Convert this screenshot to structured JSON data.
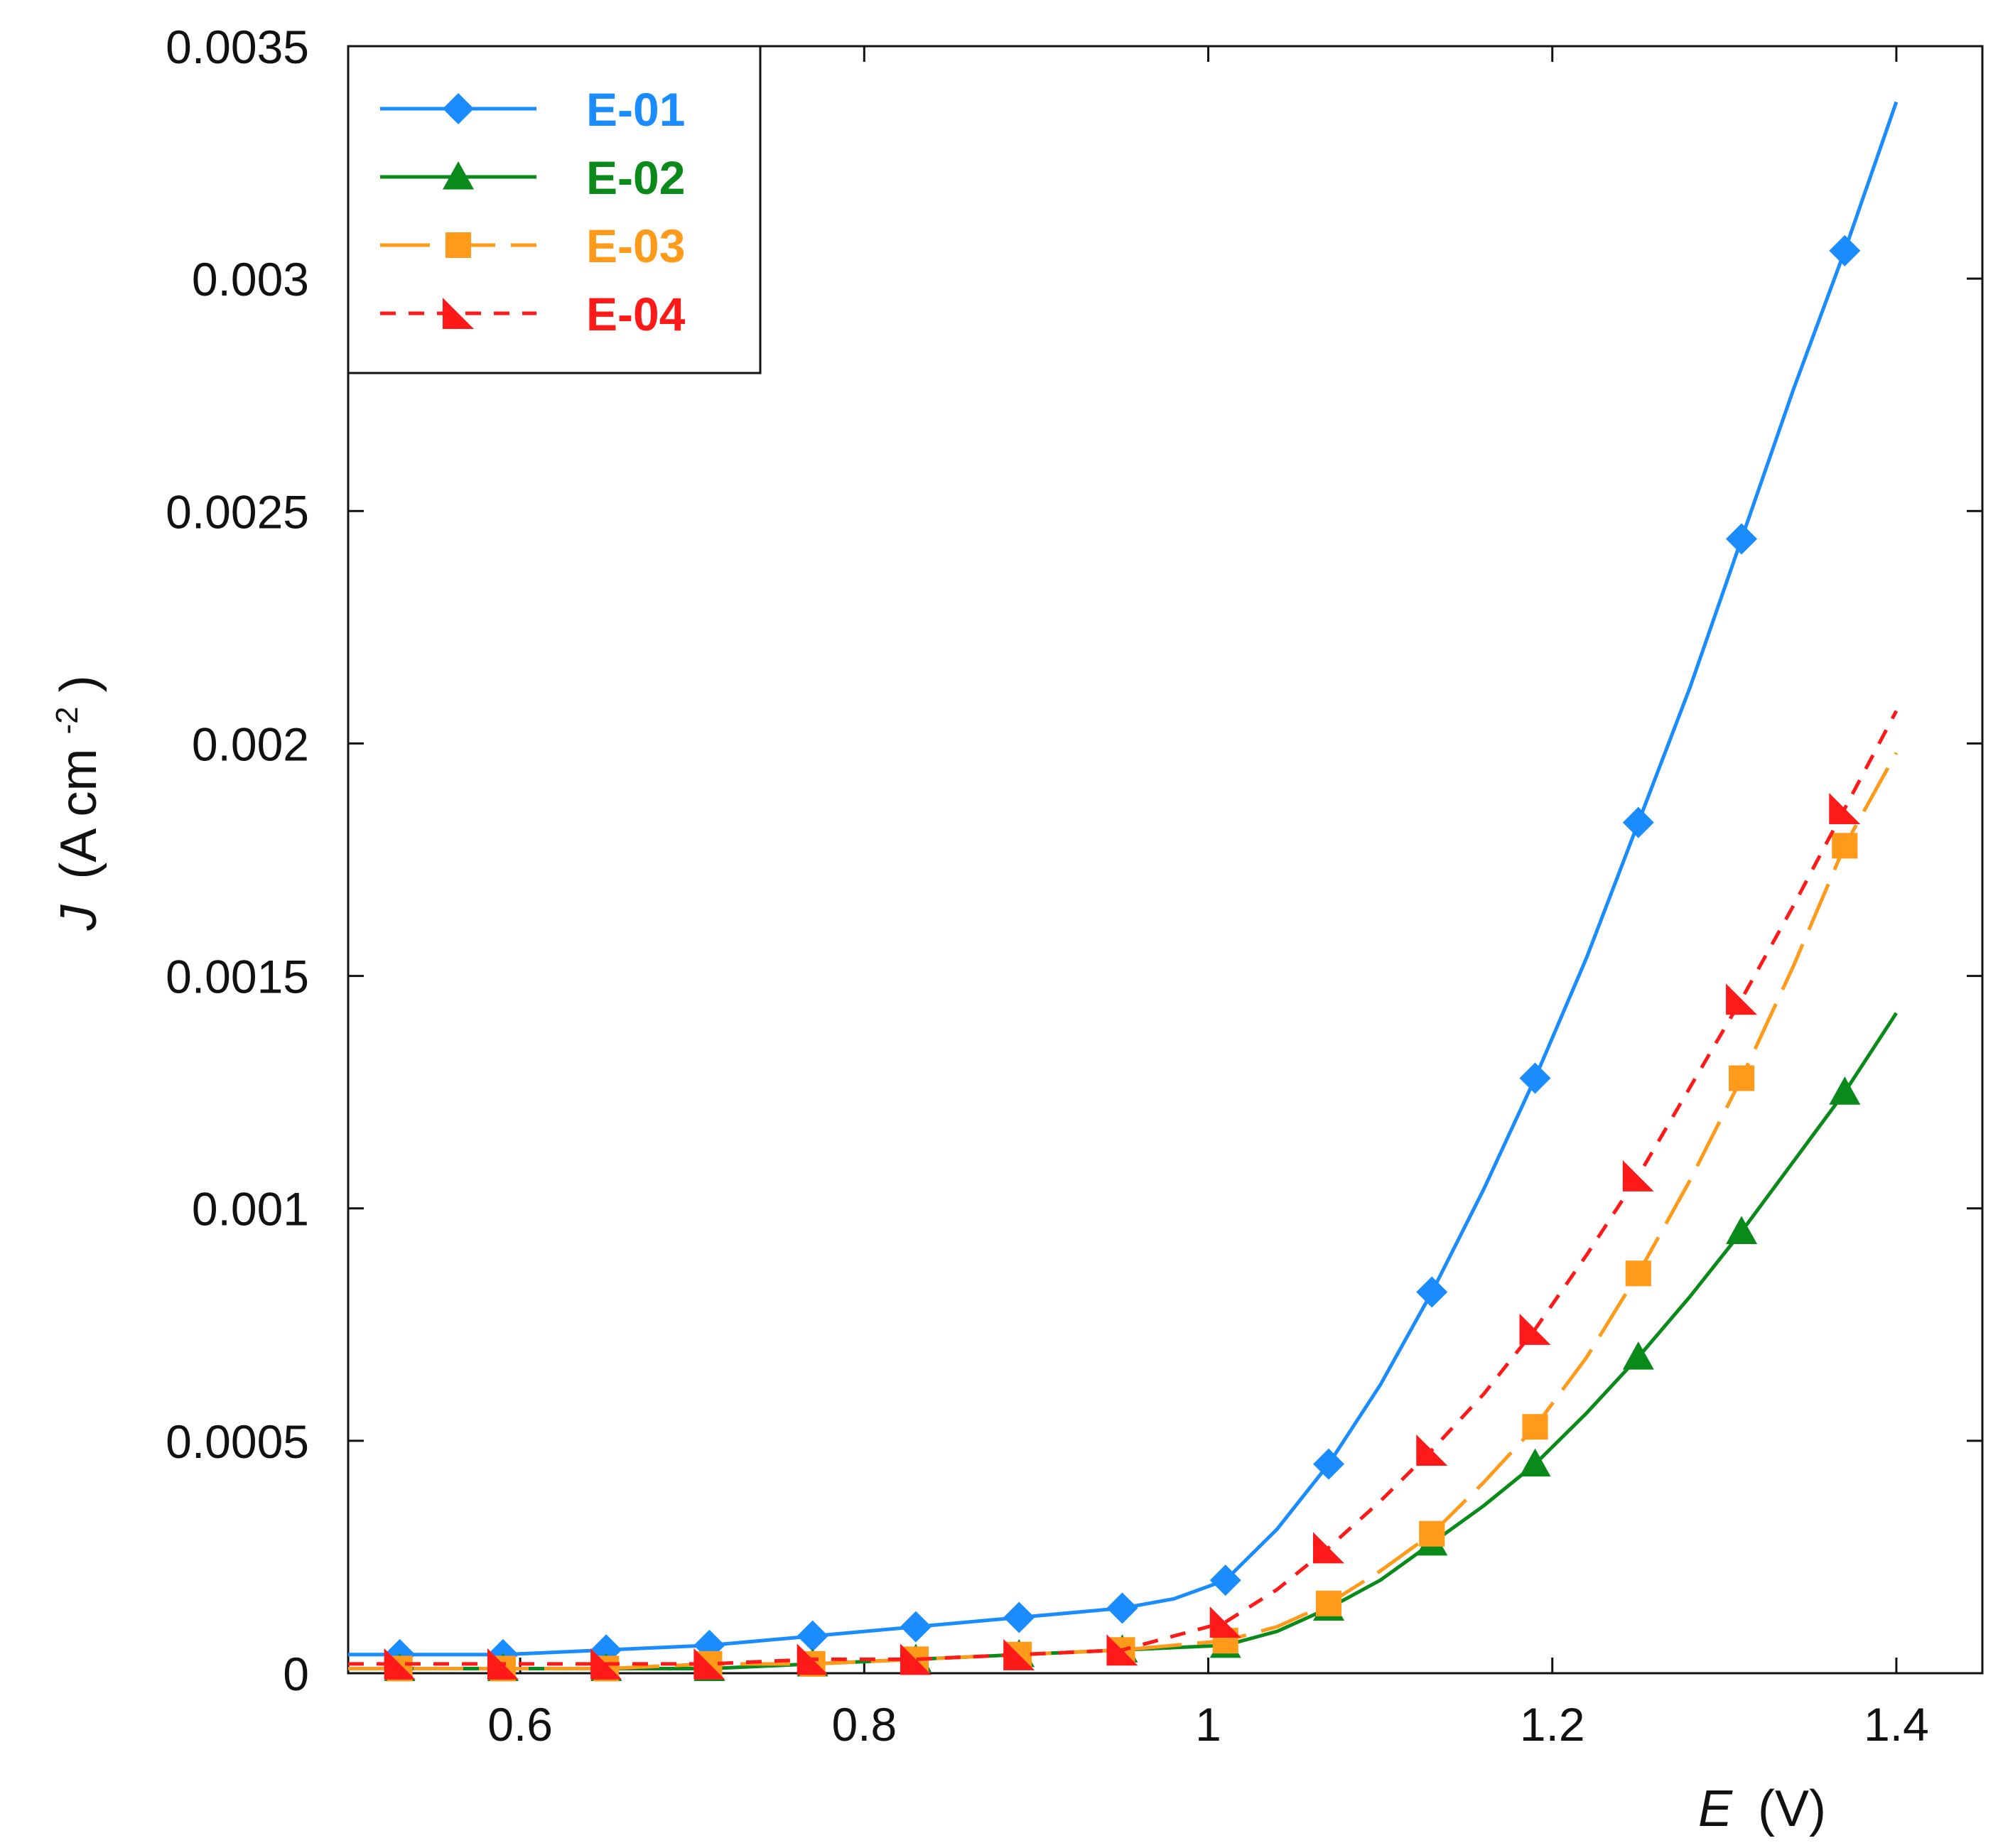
{
  "chart_data": {
    "type": "line",
    "title": "",
    "xlabel": {
      "symbol": "E",
      "unit": "(V)"
    },
    "ylabel": {
      "symbol": "J",
      "unit": "(A cm",
      "superscript": "-2",
      "close": ")"
    },
    "xlim": [
      0.5,
      1.45
    ],
    "ylim": [
      0,
      0.0035
    ],
    "xticks": [
      0.6,
      0.8,
      1,
      1.2,
      1.4
    ],
    "xtick_labels": [
      "0.6",
      "0.8",
      "1",
      "1.2",
      "1.4"
    ],
    "yticks": [
      0,
      0.0005,
      0.001,
      0.0015,
      0.002,
      0.0025,
      0.003,
      0.0035
    ],
    "ytick_labels": [
      "0",
      "0.0005",
      "0.001",
      "0.0015",
      "0.002",
      "0.0025",
      "0.003",
      "0.0035"
    ],
    "grid": false,
    "legend_position": "top-left",
    "series": [
      {
        "name": "E-01",
        "color": "#1a8cff",
        "line_style": "solid",
        "marker": "diamond",
        "line_x": [
          0.5,
          0.53,
          0.59,
          0.65,
          0.71,
          0.77,
          0.83,
          0.89,
          0.95,
          0.98,
          1.01,
          1.04,
          1.07,
          1.1,
          1.13,
          1.16,
          1.19,
          1.22,
          1.25,
          1.28,
          1.31,
          1.34,
          1.37,
          1.4
        ],
        "line_y": [
          4e-05,
          4e-05,
          4e-05,
          5e-05,
          6e-05,
          8e-05,
          0.0001,
          0.00012,
          0.00014,
          0.00016,
          0.0002,
          0.00031,
          0.00045,
          0.00062,
          0.00082,
          0.00104,
          0.00128,
          0.00154,
          0.00183,
          0.00212,
          0.00244,
          0.00276,
          0.00306,
          0.00338
        ],
        "marker_x": [
          0.53,
          0.59,
          0.65,
          0.71,
          0.77,
          0.83,
          0.89,
          0.95,
          1.01,
          1.07,
          1.13,
          1.19,
          1.25,
          1.31,
          1.37
        ],
        "marker_y": [
          4e-05,
          4e-05,
          5e-05,
          6e-05,
          8e-05,
          0.0001,
          0.00012,
          0.00014,
          0.0002,
          0.00045,
          0.00082,
          0.00128,
          0.00183,
          0.00244,
          0.00306
        ]
      },
      {
        "name": "E-02",
        "color": "#0a8a1a",
        "line_style": "solid",
        "marker": "triangle",
        "line_x": [
          0.5,
          0.53,
          0.59,
          0.65,
          0.71,
          0.77,
          0.83,
          0.89,
          0.95,
          1.01,
          1.04,
          1.07,
          1.1,
          1.13,
          1.16,
          1.19,
          1.22,
          1.25,
          1.28,
          1.31,
          1.34,
          1.37,
          1.4
        ],
        "line_y": [
          1e-05,
          1e-05,
          1e-05,
          1e-05,
          1e-05,
          2e-05,
          3e-05,
          4e-05,
          5e-05,
          6e-05,
          9e-05,
          0.00014,
          0.0002,
          0.00028,
          0.00036,
          0.00045,
          0.00056,
          0.00068,
          0.00081,
          0.00095,
          0.0011,
          0.00125,
          0.00142
        ],
        "marker_x": [
          0.53,
          0.59,
          0.65,
          0.71,
          0.77,
          0.83,
          0.89,
          0.95,
          1.01,
          1.07,
          1.13,
          1.19,
          1.25,
          1.31,
          1.37
        ],
        "marker_y": [
          1e-05,
          1e-05,
          1e-05,
          1e-05,
          2e-05,
          3e-05,
          4e-05,
          5e-05,
          6e-05,
          0.00014,
          0.00028,
          0.00045,
          0.00068,
          0.00095,
          0.00125
        ]
      },
      {
        "name": "E-03",
        "color": "#ff9a1a",
        "line_style": "long-dash",
        "marker": "square",
        "line_x": [
          0.5,
          0.53,
          0.59,
          0.65,
          0.71,
          0.77,
          0.83,
          0.89,
          0.95,
          1.01,
          1.04,
          1.07,
          1.1,
          1.13,
          1.16,
          1.19,
          1.22,
          1.25,
          1.28,
          1.31,
          1.34,
          1.37,
          1.4
        ],
        "line_y": [
          1e-05,
          1e-05,
          1e-05,
          1e-05,
          2e-05,
          2e-05,
          3e-05,
          4e-05,
          5e-05,
          7e-05,
          0.0001,
          0.00015,
          0.00022,
          0.0003,
          0.00041,
          0.00053,
          0.00068,
          0.00086,
          0.00106,
          0.00128,
          0.00152,
          0.00178,
          0.00198
        ],
        "marker_x": [
          0.53,
          0.59,
          0.65,
          0.71,
          0.77,
          0.83,
          0.89,
          0.95,
          1.01,
          1.07,
          1.13,
          1.19,
          1.25,
          1.31,
          1.37
        ],
        "marker_y": [
          1e-05,
          1e-05,
          1e-05,
          2e-05,
          2e-05,
          3e-05,
          4e-05,
          5e-05,
          7e-05,
          0.00015,
          0.0003,
          0.00053,
          0.00086,
          0.00128,
          0.00178
        ]
      },
      {
        "name": "E-04",
        "color": "#ff1a1a",
        "line_style": "dashed",
        "marker": "right-triangle",
        "line_x": [
          0.5,
          0.53,
          0.59,
          0.65,
          0.71,
          0.77,
          0.83,
          0.89,
          0.95,
          1.01,
          1.04,
          1.07,
          1.1,
          1.13,
          1.16,
          1.19,
          1.22,
          1.25,
          1.28,
          1.31,
          1.34,
          1.37,
          1.4
        ],
        "line_y": [
          2e-05,
          2e-05,
          2e-05,
          2e-05,
          2e-05,
          3e-05,
          3e-05,
          4e-05,
          5e-05,
          0.00011,
          0.00018,
          0.00027,
          0.00037,
          0.00048,
          0.0006,
          0.00074,
          0.0009,
          0.00107,
          0.00126,
          0.00145,
          0.00165,
          0.00186,
          0.00207
        ],
        "marker_x": [
          0.53,
          0.59,
          0.65,
          0.71,
          0.77,
          0.83,
          0.89,
          0.95,
          1.01,
          1.07,
          1.13,
          1.19,
          1.25,
          1.31,
          1.37
        ],
        "marker_y": [
          2e-05,
          2e-05,
          2e-05,
          2e-05,
          3e-05,
          3e-05,
          4e-05,
          5e-05,
          0.00011,
          0.00027,
          0.00048,
          0.00074,
          0.00107,
          0.00145,
          0.00186
        ]
      }
    ]
  }
}
